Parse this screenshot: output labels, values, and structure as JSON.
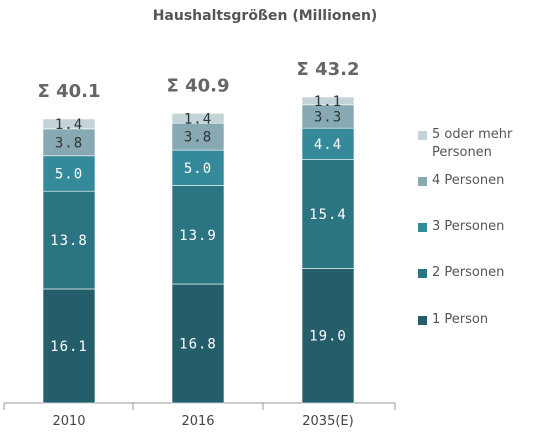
{
  "chart_data": {
    "type": "bar",
    "stacked": true,
    "title": "Haushaltsgrößen (Millionen)",
    "categories": [
      "2010",
      "2016",
      "2035(E)"
    ],
    "totals": [
      "Σ 40.1",
      "Σ 40.9",
      "Σ 43.2"
    ],
    "series": [
      {
        "name": "1 Person",
        "color": "#245e6a",
        "values": [
          16.1,
          16.8,
          19.0
        ]
      },
      {
        "name": "2 Personen",
        "color": "#2b7482",
        "values": [
          13.8,
          13.9,
          15.4
        ]
      },
      {
        "name": "3 Personen",
        "color": "#348a9a",
        "values": [
          5.0,
          5.0,
          4.4
        ]
      },
      {
        "name": "4 Personen",
        "color": "#86a9b4",
        "values": [
          3.8,
          3.8,
          3.3
        ]
      },
      {
        "name": "5 oder mehr Personen",
        "color": "#c3d3d8",
        "values": [
          1.4,
          1.4,
          1.1
        ]
      }
    ],
    "legend_order": [
      4,
      3,
      2,
      1,
      0
    ],
    "legend_placement": "right",
    "grid": false,
    "ylim": [
      0,
      43.2
    ]
  }
}
